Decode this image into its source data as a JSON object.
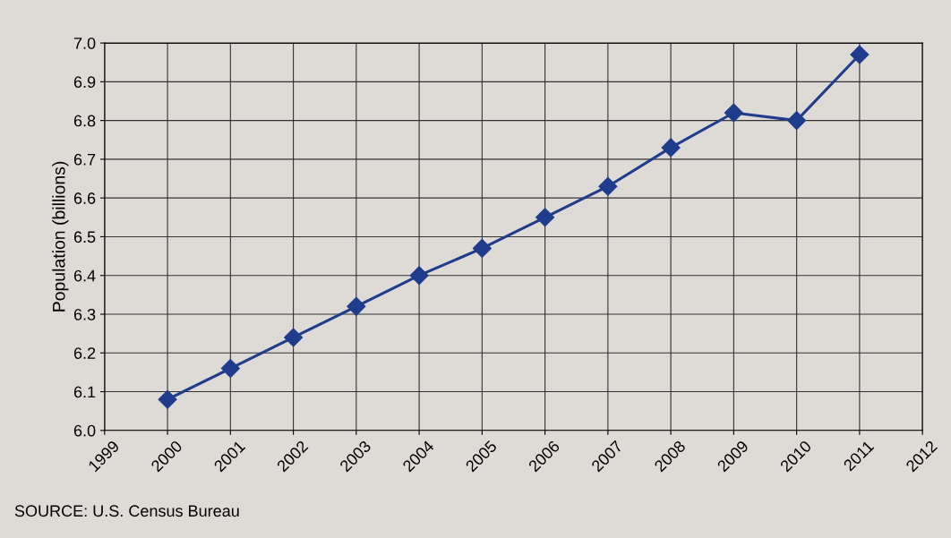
{
  "chart_data": {
    "type": "line",
    "ylabel": "Population (billions)",
    "x": [
      2000,
      2001,
      2002,
      2003,
      2004,
      2005,
      2006,
      2007,
      2008,
      2009,
      2010,
      2011
    ],
    "series": [
      {
        "color": "#1f3d8c",
        "values": [
          6.08,
          6.16,
          6.24,
          6.32,
          6.4,
          6.47,
          6.55,
          6.63,
          6.73,
          6.82,
          6.8,
          6.97
        ]
      }
    ],
    "xlim": [
      1999,
      2012
    ],
    "xticks": [
      1999,
      2000,
      2001,
      2002,
      2003,
      2004,
      2005,
      2006,
      2007,
      2008,
      2009,
      2010,
      2011,
      2012
    ],
    "ylim": [
      6.0,
      7.0
    ],
    "yticks": [
      {
        "value": 6.0,
        "label": "6.0"
      },
      6.1,
      6.2,
      6.3,
      6.4,
      6.5,
      6.6,
      6.7,
      6.8,
      6.9,
      {
        "value": 7.0,
        "label": "7.0"
      }
    ],
    "grid": true,
    "marker": "diamond",
    "line_style": "solid",
    "annotations": [
      "SOURCE: U.S. Census Bureau"
    ]
  }
}
